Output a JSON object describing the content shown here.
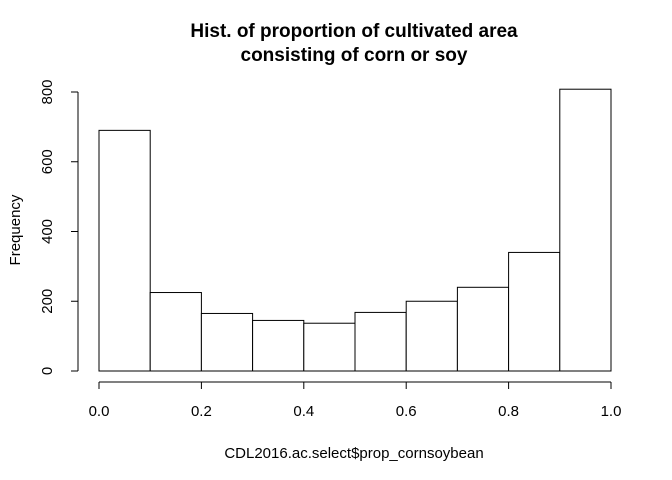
{
  "chart_data": {
    "type": "bar",
    "title_lines": [
      "Hist. of proportion of cultivated area",
      "consisting of corn or soy"
    ],
    "xlabel": "CDL2016.ac.select$prop_cornsoybean",
    "ylabel": "Frequency",
    "bins": [
      {
        "x0": 0.0,
        "x1": 0.1,
        "count": 690
      },
      {
        "x0": 0.1,
        "x1": 0.2,
        "count": 225
      },
      {
        "x0": 0.2,
        "x1": 0.3,
        "count": 165
      },
      {
        "x0": 0.3,
        "x1": 0.4,
        "count": 145
      },
      {
        "x0": 0.4,
        "x1": 0.5,
        "count": 137
      },
      {
        "x0": 0.5,
        "x1": 0.6,
        "count": 168
      },
      {
        "x0": 0.6,
        "x1": 0.7,
        "count": 200
      },
      {
        "x0": 0.7,
        "x1": 0.8,
        "count": 240
      },
      {
        "x0": 0.8,
        "x1": 0.9,
        "count": 340
      },
      {
        "x0": 0.9,
        "x1": 1.0,
        "count": 808
      }
    ],
    "xlim": [
      0.0,
      1.0
    ],
    "ylim": [
      0,
      800
    ],
    "x_ticks": [
      0.0,
      0.2,
      0.4,
      0.6,
      0.8,
      1.0
    ],
    "x_tick_labels": [
      "0.0",
      "0.2",
      "0.4",
      "0.6",
      "0.8",
      "1.0"
    ],
    "y_ticks": [
      0,
      200,
      400,
      600,
      800
    ],
    "y_tick_labels": [
      "0",
      "200",
      "400",
      "600",
      "800"
    ],
    "grid": false,
    "bar_fill": "#ffffff",
    "bar_stroke": "#000000"
  }
}
